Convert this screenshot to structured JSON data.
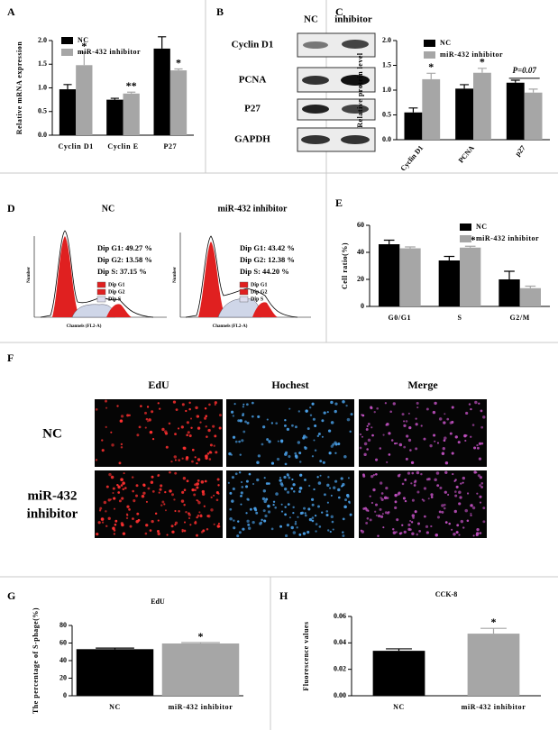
{
  "panel_labels": [
    "A",
    "B",
    "C",
    "D",
    "E",
    "F",
    "G",
    "H"
  ],
  "chart_data": [
    {
      "type": "bar",
      "y_label": "Relative mRNA expression",
      "categories": [
        "Cyclin D1",
        "Cyclin E",
        "P27"
      ],
      "series": [
        {
          "name": "NC",
          "color": "#000000",
          "values": [
            0.97,
            0.75,
            1.83
          ],
          "errors": [
            0.1,
            0.03,
            0.25
          ],
          "annotations": [
            null,
            null,
            null
          ]
        },
        {
          "name": "miR-432 inhibitor",
          "color": "#a6a6a6",
          "values": [
            1.48,
            0.88,
            1.37
          ],
          "errors": [
            0.27,
            0.03,
            0.03
          ],
          "annotations": [
            "*",
            "**",
            "*"
          ]
        }
      ],
      "ylim": [
        0,
        2.0
      ],
      "yticks": [
        {
          "value": 0,
          "label": "0.0"
        },
        {
          "value": 0.5,
          "label": "0.5"
        },
        {
          "value": 1.0,
          "label": "1.0"
        },
        {
          "value": 1.5,
          "label": "1.5"
        },
        {
          "value": 2.0,
          "label": "2.0"
        }
      ],
      "legend": "top-left"
    },
    {
      "type": "bar",
      "y_label": "Relative protein level",
      "categories": [
        "Cyclin D1",
        "PCNA",
        "p27"
      ],
      "series": [
        {
          "name": "NC",
          "color": "#000000",
          "values": [
            0.55,
            1.03,
            1.15
          ],
          "errors": [
            0.09,
            0.08,
            0.05
          ],
          "annotations": [
            null,
            null,
            null
          ]
        },
        {
          "name": "miR-432 inhibitor",
          "color": "#a6a6a6",
          "values": [
            1.22,
            1.35,
            0.95
          ],
          "errors": [
            0.12,
            0.09,
            0.07
          ],
          "annotations": [
            "*",
            "*",
            "P=0.07"
          ]
        }
      ],
      "ylim": [
        0,
        2.0
      ],
      "yticks": [
        {
          "value": 0,
          "label": "0.0"
        },
        {
          "value": 0.5,
          "label": "0.5"
        },
        {
          "value": 1.0,
          "label": "1.0"
        },
        {
          "value": 1.5,
          "label": "1.5"
        },
        {
          "value": 2.0,
          "label": "2.0"
        }
      ],
      "legend": "top-left"
    },
    {
      "type": "bar",
      "y_label": "Cell ratio(%)",
      "categories": [
        "G0/G1",
        "S",
        "G2/M"
      ],
      "series": [
        {
          "name": "NC",
          "color": "#000000",
          "values": [
            46,
            34,
            20
          ],
          "errors": [
            3,
            3,
            6
          ],
          "annotations": [
            null,
            null,
            null
          ]
        },
        {
          "name": "miR-432 inhibitor",
          "color": "#a6a6a6",
          "values": [
            43,
            43.5,
            13.5
          ],
          "errors": [
            1,
            1,
            1.5
          ],
          "annotations": [
            null,
            "**",
            null
          ]
        }
      ],
      "ylim": [
        0,
        60
      ],
      "yticks": [
        0,
        20,
        40,
        60
      ],
      "legend": "top-right"
    },
    {
      "type": "bar",
      "title": "EdU",
      "y_label": "The percentage of S-phage(%)",
      "categories": [
        "NC",
        "miR-432 inhibitor"
      ],
      "values": [
        53,
        59.5
      ],
      "errors": [
        1.2,
        1
      ],
      "colors": [
        "#000000",
        "#a6a6a6"
      ],
      "annotations": [
        null,
        "*"
      ],
      "ylim": [
        0,
        80
      ],
      "yticks": [
        0,
        20,
        40,
        60,
        80
      ]
    },
    {
      "type": "bar",
      "title": "CCK-8",
      "y_label": "Fluorescence values",
      "categories": [
        "NC",
        "miR-432 inhibitor"
      ],
      "values": [
        0.034,
        0.047
      ],
      "errors": [
        0.0015,
        0.004
      ],
      "colors": [
        "#000000",
        "#a6a6a6"
      ],
      "annotations": [
        null,
        "*"
      ],
      "ylim": [
        0,
        0.06
      ],
      "yticks": [
        {
          "value": 0,
          "label": "0.00"
        },
        {
          "value": 0.02,
          "label": "0.02"
        },
        {
          "value": 0.04,
          "label": "0.04"
        },
        {
          "value": 0.06,
          "label": "0.06"
        }
      ]
    }
  ],
  "blot": {
    "columns": [
      "NC",
      "inhibitor"
    ],
    "rows": [
      "Cyclin D1",
      "PCNA",
      "P27",
      "GAPDH"
    ]
  },
  "flow": {
    "panels": [
      {
        "title": "NC",
        "stats": [
          "Dip G1: 49.27 %",
          "Dip G2: 13.58 %",
          "Dip S: 37.15 %"
        ]
      },
      {
        "title": "miR-432 inhibitor",
        "stats": [
          "Dip G1: 43.42 %",
          "Dip G2: 12.38 %",
          "Dip S: 44.20 %"
        ]
      }
    ],
    "legend": [
      "Dip G1",
      "Dip G2",
      "Dip S"
    ],
    "x_label": "Channels (FL2-A)",
    "y_label": "Number"
  },
  "microscopy": {
    "columns": [
      "EdU",
      "Hochest",
      "Merge"
    ],
    "row_labels": [
      [
        "NC"
      ],
      [
        "miR-432",
        "inhibitor"
      ]
    ]
  }
}
